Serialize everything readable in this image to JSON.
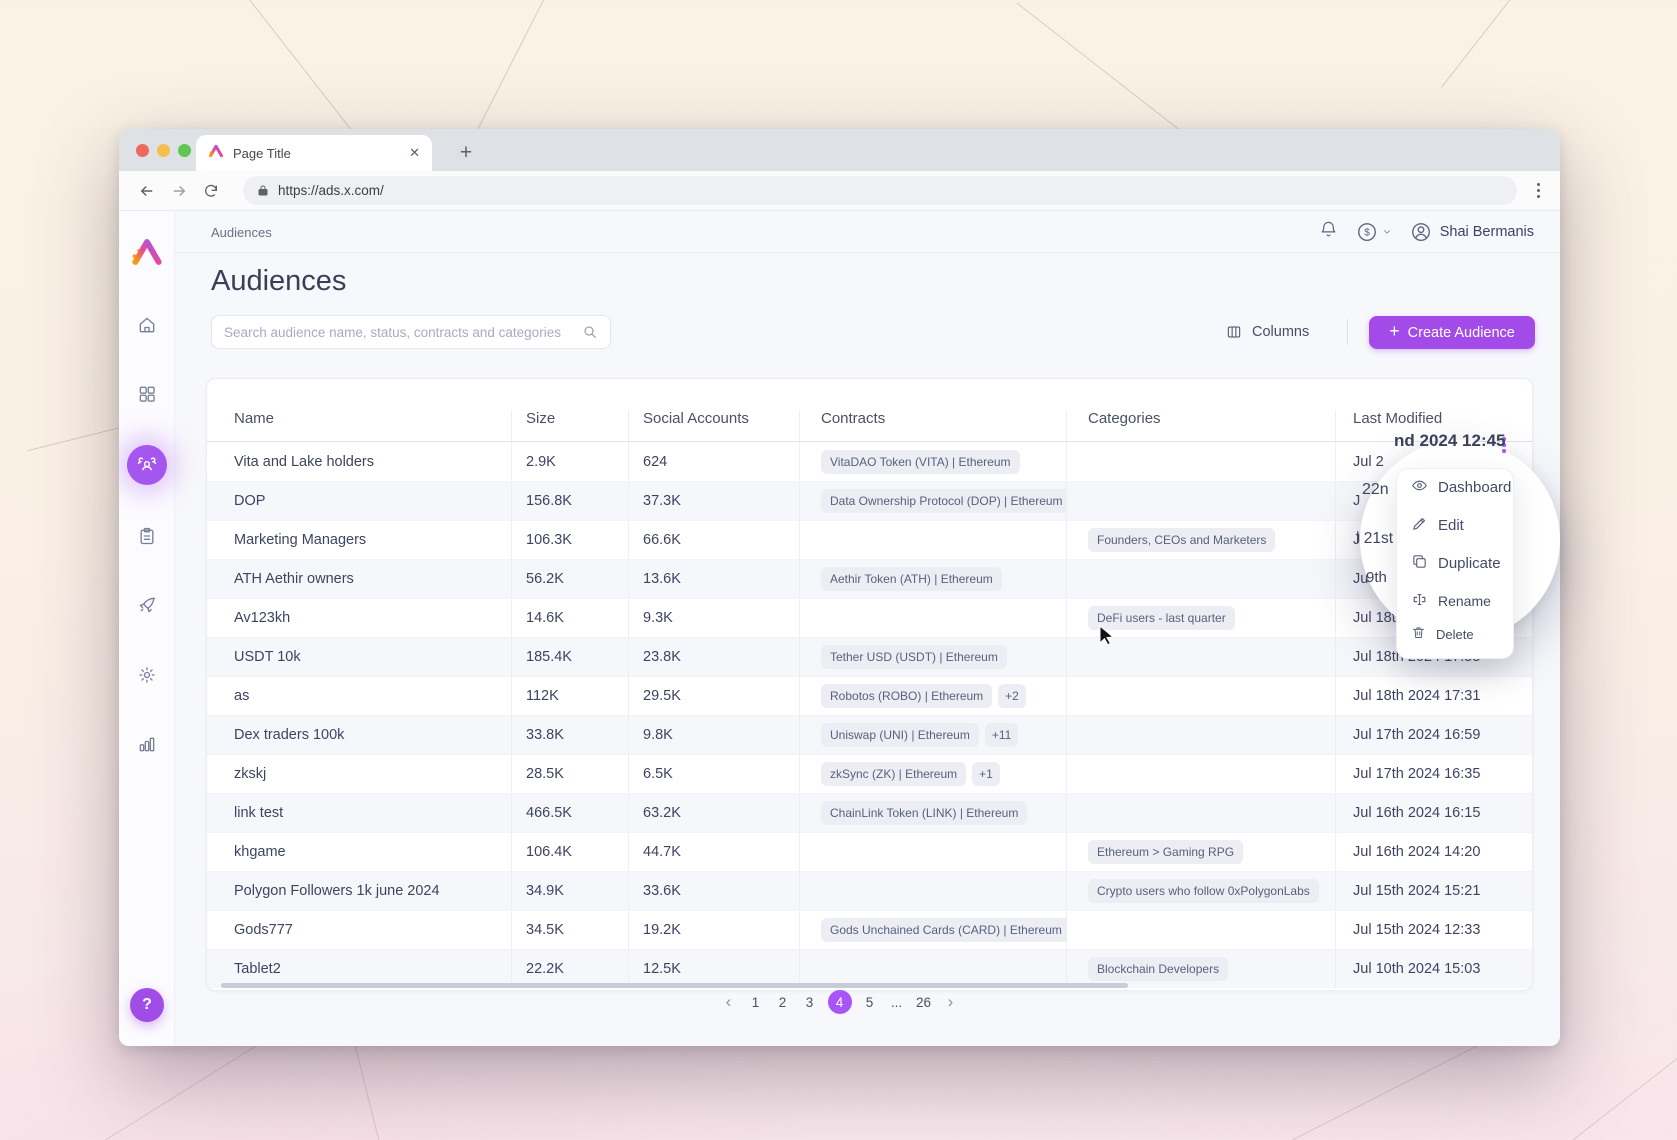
{
  "browser": {
    "tab_title": "Page Title",
    "url": "https://ads.x.com/"
  },
  "header": {
    "breadcrumb": "Audiences",
    "user_name": "Shai Bermanis",
    "currency_symbol": "$",
    "icons": [
      "bell-icon",
      "currency-dollar-icon",
      "avatar-icon"
    ]
  },
  "page": {
    "title": "Audiences",
    "search_placeholder": "Search audience name, status, contracts and categories",
    "columns_label": "Columns",
    "create_label": "Create Audience",
    "help_label": "?"
  },
  "sidebar": {
    "items": [
      "home",
      "apps-grid",
      "audiences",
      "clipboard",
      "rocket",
      "settings",
      "analytics"
    ],
    "active": "audiences"
  },
  "table": {
    "headers": [
      "Name",
      "Size",
      "Social Accounts",
      "Contracts",
      "Categories",
      "Last Modified"
    ],
    "rows": [
      {
        "name": "Vita and Lake holders",
        "size": "2.9K",
        "social": "624",
        "contracts": [
          "VitaDAO Token (VITA) | Ethereum"
        ],
        "contracts_more": null,
        "categories": [],
        "last_modified": "Jul 2"
      },
      {
        "name": "DOP",
        "size": "156.8K",
        "social": "37.3K",
        "contracts": [
          "Data Ownership Protocol (DOP) | Ethereum"
        ],
        "contracts_more": null,
        "categories": [],
        "last_modified": "J"
      },
      {
        "name": "Marketing Managers",
        "size": "106.3K",
        "social": "66.6K",
        "contracts": [],
        "contracts_more": null,
        "categories": [
          "Founders, CEOs and Marketers"
        ],
        "last_modified": "Ju"
      },
      {
        "name": "ATH Aethir owners",
        "size": "56.2K",
        "social": "13.6K",
        "contracts": [
          "Aethir Token (ATH) | Ethereum"
        ],
        "contracts_more": null,
        "categories": [],
        "last_modified": "Jul"
      },
      {
        "name": "Av123kh",
        "size": "14.6K",
        "social": "9.3K",
        "contracts": [],
        "contracts_more": null,
        "categories": [
          "DeFi users - last quarter"
        ],
        "last_modified": "Jul 18th"
      },
      {
        "name": "USDT 10k",
        "size": "185.4K",
        "social": "23.8K",
        "contracts": [
          "Tether USD (USDT) | Ethereum"
        ],
        "contracts_more": null,
        "categories": [],
        "last_modified": "Jul 18th 2024 17:55"
      },
      {
        "name": "as",
        "size": "112K",
        "social": "29.5K",
        "contracts": [
          "Robotos (ROBO) | Ethereum"
        ],
        "contracts_more": "+2",
        "categories": [],
        "last_modified": "Jul 18th 2024 17:31"
      },
      {
        "name": "Dex traders 100k",
        "size": "33.8K",
        "social": "9.8K",
        "contracts": [
          "Uniswap (UNI) | Ethereum"
        ],
        "contracts_more": "+11",
        "categories": [],
        "last_modified": "Jul 17th 2024 16:59"
      },
      {
        "name": "zkskj",
        "size": "28.5K",
        "social": "6.5K",
        "contracts": [
          "zkSync (ZK) | Ethereum"
        ],
        "contracts_more": "+1",
        "categories": [],
        "last_modified": "Jul 17th 2024 16:35"
      },
      {
        "name": "link test",
        "size": "466.5K",
        "social": "63.2K",
        "contracts": [
          "ChainLink Token (LINK) | Ethereum"
        ],
        "contracts_more": null,
        "categories": [],
        "last_modified": "Jul 16th 2024 16:15"
      },
      {
        "name": "khgame",
        "size": "106.4K",
        "social": "44.7K",
        "contracts": [],
        "contracts_more": null,
        "categories": [
          "Ethereum > Gaming RPG"
        ],
        "last_modified": "Jul 16th 2024 14:20"
      },
      {
        "name": "Polygon Followers 1k june 2024",
        "size": "34.9K",
        "social": "33.6K",
        "contracts": [],
        "contracts_more": null,
        "categories": [
          "Crypto users who follow 0xPolygonLabs"
        ],
        "last_modified": "Jul 15th 2024 15:21"
      },
      {
        "name": "Gods777",
        "size": "34.5K",
        "social": "19.2K",
        "contracts": [
          "Gods Unchained Cards (CARD) | Ethereum"
        ],
        "contracts_more": "+1",
        "categories": [],
        "last_modified": "Jul 15th 2024 12:33"
      },
      {
        "name": "Tablet2",
        "size": "22.2K",
        "social": "12.5K",
        "contracts": [],
        "contracts_more": null,
        "categories": [
          "Blockchain Developers"
        ],
        "last_modified": "Jul 10th 2024 15:03"
      }
    ]
  },
  "context_menu": {
    "items": [
      {
        "icon": "eye",
        "label": "Dashboard"
      },
      {
        "icon": "pencil",
        "label": "Edit"
      },
      {
        "icon": "copy",
        "label": "Duplicate"
      },
      {
        "icon": "rename",
        "label": "Rename"
      },
      {
        "icon": "trash",
        "label": "Delete"
      }
    ],
    "magnified_fragments": {
      "row1": "nd 2024 12:45",
      "row2": "22n",
      "row3": "l 21st",
      "row4": "9th"
    }
  },
  "pagination": {
    "prev": "‹",
    "pages": [
      "1",
      "2",
      "3",
      "4",
      "5",
      "...",
      "26"
    ],
    "active": "4",
    "next": "›"
  },
  "colors": {
    "accent_purple": "#A34BE9",
    "active_pill": "#A855F7",
    "badge_bg": "#ECEEF3",
    "text_dark": "#3D4460",
    "content_bg": "#F7F8FB"
  }
}
